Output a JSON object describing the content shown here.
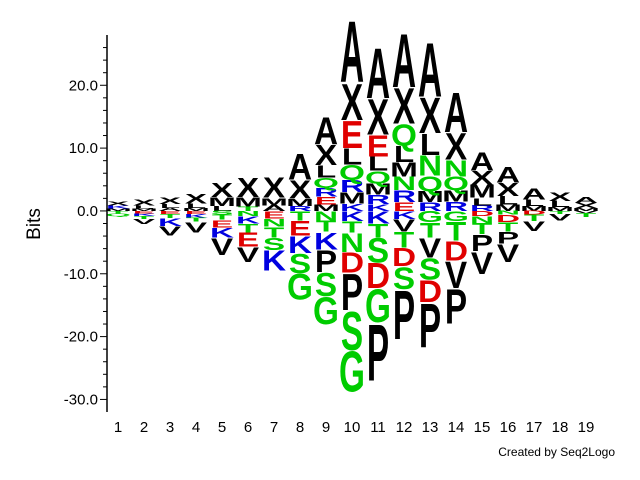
{
  "chart_data": {
    "type": "sequence-logo",
    "ylabel": "Bits",
    "xlabel": "",
    "ylim": [
      -32,
      28
    ],
    "yticks": [
      20.0,
      10.0,
      0.0,
      -10.0,
      -20.0,
      -30.0
    ],
    "ytick_labels": [
      "20.0",
      "10.0",
      "0.0",
      "-10.0",
      "-20.0",
      "-30.0"
    ],
    "positions": [
      "1",
      "2",
      "3",
      "4",
      "5",
      "6",
      "7",
      "8",
      "9",
      "10",
      "11",
      "12",
      "13",
      "14",
      "15",
      "16",
      "17",
      "18",
      "19"
    ],
    "colors": {
      "hydrophobic": "#000000",
      "acidic": "#e00000",
      "basic": "#0000e0",
      "polar": "#00cc00"
    },
    "residue_colors": {
      "A": "#000000",
      "V": "#000000",
      "L": "#000000",
      "I": "#000000",
      "M": "#000000",
      "F": "#000000",
      "W": "#000000",
      "P": "#000000",
      "X": "#000000",
      "C": "#000000",
      "D": "#e00000",
      "E": "#e00000",
      "K": "#0000e0",
      "R": "#0000e0",
      "H": "#0000e0",
      "S": "#00cc00",
      "T": "#00cc00",
      "N": "#00cc00",
      "Q": "#00cc00",
      "G": "#00cc00",
      "Y": "#00cc00"
    },
    "enriched": [
      [
        [
          "X",
          0.6
        ],
        [
          "K",
          0.5
        ],
        [
          "M",
          0.4
        ]
      ],
      [
        [
          "X",
          0.9
        ],
        [
          "L",
          0.5
        ],
        [
          "M",
          0.4
        ]
      ],
      [
        [
          "X",
          1.1
        ],
        [
          "L",
          0.6
        ],
        [
          "A",
          0.5
        ]
      ],
      [
        [
          "X",
          1.6
        ],
        [
          "L",
          0.7
        ],
        [
          "M",
          0.5
        ]
      ],
      [
        [
          "X",
          2.3
        ],
        [
          "M",
          1.4
        ],
        [
          "L",
          0.8
        ]
      ],
      [
        [
          "X",
          3.2
        ],
        [
          "M",
          1.5
        ],
        [
          "T",
          0.7
        ]
      ],
      [
        [
          "X",
          3.3
        ],
        [
          "M",
          1.2
        ],
        [
          "A",
          0.9
        ]
      ],
      [
        [
          "A",
          4.2
        ],
        [
          "X",
          3.0
        ],
        [
          "M",
          1.2
        ],
        [
          "R",
          0.8
        ]
      ],
      [
        [
          "A",
          4.5
        ],
        [
          "X",
          3.3
        ],
        [
          "L",
          2.0
        ],
        [
          "Q",
          1.6
        ],
        [
          "R",
          1.4
        ],
        [
          "E",
          1.3
        ],
        [
          "M",
          1.0
        ]
      ],
      [
        [
          "A",
          10.0
        ],
        [
          "X",
          6.0
        ],
        [
          "E",
          4.5
        ],
        [
          "L",
          2.6
        ],
        [
          "Q",
          2.4
        ],
        [
          "R",
          2.0
        ],
        [
          "M",
          1.8
        ],
        [
          "K",
          1.2
        ]
      ],
      [
        [
          "A",
          8.2
        ],
        [
          "X",
          5.8
        ],
        [
          "E",
          3.5
        ],
        [
          "L",
          2.3
        ],
        [
          "Q",
          2.0
        ],
        [
          "M",
          1.8
        ],
        [
          "R",
          1.5
        ],
        [
          "K",
          1.1
        ]
      ],
      [
        [
          "A",
          8.7
        ],
        [
          "X",
          5.8
        ],
        [
          "Q",
          3.5
        ],
        [
          "L",
          2.6
        ],
        [
          "M",
          2.3
        ],
        [
          "N",
          2.2
        ],
        [
          "R",
          1.9
        ],
        [
          "E",
          1.4
        ]
      ],
      [
        [
          "A",
          8.8
        ],
        [
          "X",
          5.8
        ],
        [
          "L",
          3.5
        ],
        [
          "N",
          3.3
        ],
        [
          "Q",
          2.4
        ],
        [
          "M",
          1.8
        ],
        [
          "R",
          1.4
        ]
      ],
      [
        [
          "A",
          6.5
        ],
        [
          "X",
          4.4
        ],
        [
          "N",
          2.7
        ],
        [
          "Q",
          2.2
        ],
        [
          "M",
          1.8
        ],
        [
          "R",
          1.5
        ]
      ],
      [
        [
          "A",
          3.0
        ],
        [
          "X",
          2.2
        ],
        [
          "M",
          2.1
        ],
        [
          "L",
          1.2
        ],
        [
          "R",
          0.9
        ]
      ],
      [
        [
          "A",
          2.5
        ],
        [
          "X",
          2.1
        ],
        [
          "L",
          1.4
        ],
        [
          "M",
          1.0
        ]
      ],
      [
        [
          "A",
          1.8
        ],
        [
          "L",
          1.0
        ],
        [
          "M",
          0.8
        ]
      ],
      [
        [
          "X",
          1.4
        ],
        [
          "L",
          1.0
        ],
        [
          "M",
          0.6
        ]
      ],
      [
        [
          "A",
          0.9
        ],
        [
          "X",
          0.8
        ],
        [
          "M",
          0.5
        ]
      ]
    ],
    "depleted": [
      [
        [
          "T",
          0.4
        ],
        [
          "Q",
          0.4
        ]
      ],
      [
        [
          "V",
          0.8
        ],
        [
          "E",
          0.4
        ],
        [
          "K",
          0.4
        ],
        [
          "T",
          0.5
        ]
      ],
      [
        [
          "V",
          1.5
        ],
        [
          "K",
          1.3
        ],
        [
          "T",
          0.6
        ],
        [
          "E",
          0.5
        ]
      ],
      [
        [
          "V",
          1.7
        ],
        [
          "K",
          0.6
        ],
        [
          "E",
          0.5
        ],
        [
          "T",
          0.6
        ]
      ],
      [
        [
          "V",
          2.8
        ],
        [
          "K",
          1.6
        ],
        [
          "E",
          1.2
        ],
        [
          "T",
          0.8
        ],
        [
          "S",
          0.6
        ]
      ],
      [
        [
          "V",
          2.4
        ],
        [
          "E",
          2.3
        ],
        [
          "T",
          1.4
        ],
        [
          "K",
          1.2
        ],
        [
          "N",
          0.8
        ]
      ],
      [
        [
          "K",
          3.3
        ],
        [
          "S",
          2.0
        ],
        [
          "T",
          1.7
        ],
        [
          "N",
          1.3
        ],
        [
          "E",
          1.2
        ]
      ],
      [
        [
          "G",
          4.2
        ],
        [
          "S",
          3.2
        ],
        [
          "K",
          2.8
        ],
        [
          "E",
          2.4
        ],
        [
          "T",
          1.5
        ]
      ],
      [
        [
          "G",
          4.5
        ],
        [
          "P",
          3.6
        ],
        [
          "S",
          3.8
        ],
        [
          "K",
          2.8
        ],
        [
          "T",
          1.8
        ],
        [
          "N",
          1.5
        ]
      ],
      [
        [
          "G",
          6.6
        ],
        [
          "S",
          6.3
        ],
        [
          "P",
          6.0
        ],
        [
          "D",
          3.3
        ],
        [
          "N",
          3.1
        ],
        [
          "T",
          1.8
        ],
        [
          "K",
          1.6
        ]
      ],
      [
        [
          "P",
          9.3
        ],
        [
          "G",
          5.4
        ],
        [
          "S",
          4.0
        ],
        [
          "D",
          4.1
        ],
        [
          "T",
          2.2
        ],
        [
          "K",
          2.0
        ]
      ],
      [
        [
          "P",
          8.0
        ],
        [
          "S",
          3.6
        ],
        [
          "D",
          3.0
        ],
        [
          "T",
          2.5
        ],
        [
          "V",
          2.0
        ],
        [
          "K",
          1.3
        ]
      ],
      [
        [
          "P",
          7.2
        ],
        [
          "D",
          3.6
        ],
        [
          "S",
          3.5
        ],
        [
          "V",
          3.2
        ],
        [
          "T",
          2.4
        ],
        [
          "G",
          1.8
        ]
      ],
      [
        [
          "P",
          5.6
        ],
        [
          "V",
          4.4
        ],
        [
          "T",
          3.1
        ],
        [
          "D",
          3.2
        ],
        [
          "G",
          1.6
        ]
      ],
      [
        [
          "V",
          3.6
        ],
        [
          "P",
          2.7
        ],
        [
          "T",
          1.8
        ],
        [
          "N",
          1.1
        ],
        [
          "D",
          0.8
        ]
      ],
      [
        [
          "V",
          2.9
        ],
        [
          "P",
          1.9
        ],
        [
          "T",
          1.5
        ],
        [
          "D",
          1.2
        ],
        [
          "N",
          0.6
        ]
      ],
      [
        [
          "V",
          1.6
        ],
        [
          "T",
          1.0
        ],
        [
          "D",
          0.6
        ]
      ],
      [
        [
          "V",
          1.0
        ],
        [
          "T",
          0.5
        ]
      ],
      [
        [
          "T",
          0.6
        ],
        [
          "V",
          0.4
        ]
      ]
    ]
  },
  "footer": {
    "credit": "Created by Seq2Logo"
  }
}
